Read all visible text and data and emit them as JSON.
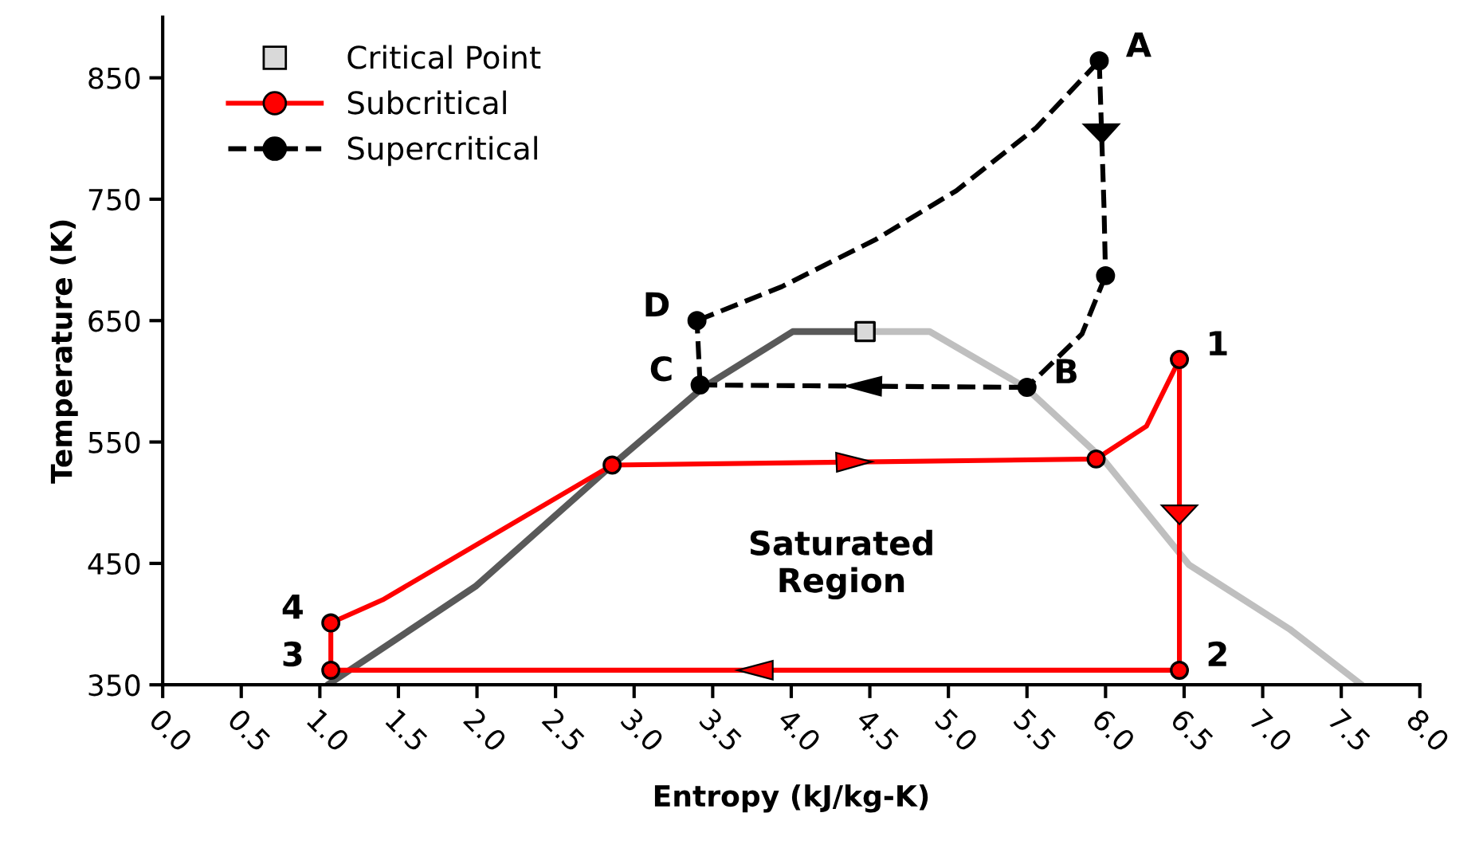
{
  "chart_data": {
    "type": "line",
    "xlabel": "Entropy (kJ/kg-K)",
    "ylabel": "Temperature (K)",
    "xlim": [
      0,
      8
    ],
    "ylim": [
      350,
      900
    ],
    "xticks": [
      {
        "value": 0,
        "label": "0.0"
      },
      {
        "value": 0.5,
        "label": "0.5"
      },
      {
        "value": 1,
        "label": "1.0"
      },
      {
        "value": 1.5,
        "label": "1.5"
      },
      {
        "value": 2,
        "label": "2.0"
      },
      {
        "value": 2.5,
        "label": "2.5"
      },
      {
        "value": 3,
        "label": "3.0"
      },
      {
        "value": 3.5,
        "label": "3.5"
      },
      {
        "value": 4,
        "label": "4.0"
      },
      {
        "value": 4.5,
        "label": "4.5"
      },
      {
        "value": 5,
        "label": "5.0"
      },
      {
        "value": 5.5,
        "label": "5.5"
      },
      {
        "value": 6,
        "label": "6.0"
      },
      {
        "value": 6.5,
        "label": "6.5"
      },
      {
        "value": 7,
        "label": "7.0"
      },
      {
        "value": 7.5,
        "label": "7.5"
      },
      {
        "value": 8,
        "label": "8.0"
      }
    ],
    "yticks": [
      350,
      450,
      550,
      650,
      750,
      850
    ],
    "grid": false,
    "legend": "top left",
    "series": [
      {
        "color": "#595959",
        "line_style": "solid",
        "x": [
          1.05,
          1.99,
          2.86,
          3.44,
          4.01,
          4.47
        ],
        "values": [
          350,
          431,
          531,
          595,
          641,
          641
        ]
      },
      {
        "color": "#bfbfbf",
        "line_style": "solid",
        "x": [
          4.47,
          4.88,
          5.49,
          5.99,
          6.53,
          7.17,
          7.63
        ],
        "values": [
          641,
          641,
          595,
          535,
          449,
          396,
          350
        ]
      },
      {
        "color": "#ff0000",
        "line_style": "solid",
        "x": [
          1.07,
          1.07
        ],
        "values": [
          362,
          401
        ]
      },
      {
        "color": "#ff0000",
        "line_style": "solid",
        "x": [
          1.07,
          1.4,
          2.86,
          5.94,
          6.26,
          6.47
        ],
        "values": [
          401,
          420,
          531,
          536,
          563,
          618
        ]
      },
      {
        "color": "#ff0000",
        "line_style": "solid",
        "x": [
          6.47,
          6.47
        ],
        "values": [
          618,
          362
        ]
      },
      {
        "color": "#ff0000",
        "line_style": "solid",
        "x": [
          6.47,
          1.07
        ],
        "values": [
          362,
          362
        ]
      },
      {
        "color": "#000000",
        "line_style": "dashed",
        "x": [
          3.4,
          3.94,
          4.54,
          5.05,
          5.56,
          5.96
        ],
        "values": [
          650,
          678,
          717,
          757,
          809,
          864
        ]
      },
      {
        "color": "#000000",
        "line_style": "dashed",
        "x": [
          5.96,
          5.99,
          6.0
        ],
        "values": [
          864,
          744,
          687
        ]
      },
      {
        "color": "#000000",
        "line_style": "dashed",
        "x": [
          6.0,
          5.85,
          5.5
        ],
        "values": [
          687,
          639,
          595
        ]
      },
      {
        "color": "#000000",
        "line_style": "dashed",
        "x": [
          5.5,
          3.42
        ],
        "values": [
          595,
          597
        ]
      },
      {
        "color": "#000000",
        "line_style": "dashed",
        "x": [
          3.42,
          3.4
        ],
        "values": [
          597,
          650
        ]
      },
      {
        "type": "scatter",
        "name": "Critical Point",
        "color": "#d9d9d9",
        "marker": "square",
        "x": [
          4.47
        ],
        "values": [
          641
        ]
      },
      {
        "type": "scatter",
        "name": "Subcritical",
        "color": "#ff0000",
        "marker": "circle",
        "line_style": "solid",
        "x": [
          6.47,
          6.47,
          1.07,
          1.07,
          2.86,
          5.94
        ],
        "values": [
          618,
          362,
          362,
          401,
          531,
          536
        ]
      },
      {
        "type": "scatter",
        "name": "Supercritical",
        "color": "#000000",
        "marker": "circle",
        "line_style": "dashed",
        "x": [
          5.96,
          5.5,
          3.42,
          3.4,
          6.0
        ],
        "values": [
          864,
          595,
          597,
          650,
          687
        ]
      }
    ],
    "annotations": [
      {
        "text": "A",
        "x": 5.96,
        "y": 864
      },
      {
        "text": "B",
        "x": 5.5,
        "y": 595
      },
      {
        "text": "C",
        "x": 3.42,
        "y": 597
      },
      {
        "text": "D",
        "x": 3.4,
        "y": 650
      },
      {
        "text": "1",
        "x": 6.47,
        "y": 618
      },
      {
        "text": "2",
        "x": 6.47,
        "y": 362
      },
      {
        "text": "3",
        "x": 1.07,
        "y": 362
      },
      {
        "text": "4",
        "x": 1.07,
        "y": 401
      },
      "Saturated\nRegion"
    ]
  }
}
